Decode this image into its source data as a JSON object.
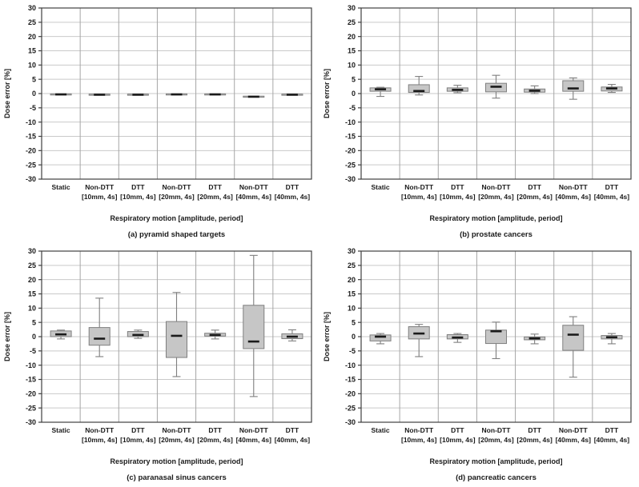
{
  "colors": {
    "background": "#ffffff",
    "box_fill": "#c6c6c6",
    "box_border": "#7f7f7f",
    "whisker": "#7f7f7f",
    "median": "#1a1a1a",
    "gridline": "#c9c9c9",
    "separator": "#a6a6a6",
    "axis": "#404040",
    "text": "#1a1a1a"
  },
  "chart_data": [
    {
      "type": "box",
      "caption": "(a) pyramid shaped targets",
      "ylabel": "Dose error [%]",
      "xlabel": "Respiratory motion [amplitude, period]",
      "ylim": [
        -30,
        30
      ],
      "ytick_step": 5,
      "yticks": [
        30,
        25,
        20,
        15,
        10,
        5,
        0,
        -5,
        -10,
        -15,
        -20,
        -25,
        -30
      ],
      "grid": true,
      "legend": "none",
      "categories": [
        [
          "Static",
          ""
        ],
        [
          "Non-DTT",
          "[10mm, 4s]"
        ],
        [
          "DTT",
          "[10mm, 4s]"
        ],
        [
          "Non-DTT",
          "[20mm, 4s]"
        ],
        [
          "DTT",
          "[20mm, 4s]"
        ],
        [
          "Non-DTT",
          "[40mm, 4s]"
        ],
        [
          "DTT",
          "[40mm, 4s]"
        ]
      ],
      "boxes": [
        {
          "low": -0.5,
          "q1": -0.5,
          "median": -0.3,
          "q3": -0.1,
          "high": -0.1
        },
        {
          "low": -0.6,
          "q1": -0.6,
          "median": -0.4,
          "q3": -0.2,
          "high": -0.2
        },
        {
          "low": -0.6,
          "q1": -0.6,
          "median": -0.4,
          "q3": -0.2,
          "high": -0.2
        },
        {
          "low": -0.5,
          "q1": -0.5,
          "median": -0.3,
          "q3": -0.1,
          "high": -0.1
        },
        {
          "low": -0.5,
          "q1": -0.5,
          "median": -0.3,
          "q3": -0.1,
          "high": -0.1
        },
        {
          "low": -1.3,
          "q1": -1.3,
          "median": -1.1,
          "q3": -0.9,
          "high": -0.9
        },
        {
          "low": -0.6,
          "q1": -0.6,
          "median": -0.4,
          "q3": -0.2,
          "high": -0.2
        }
      ]
    },
    {
      "type": "box",
      "caption": "(b) prostate cancers",
      "ylabel": "Dose error [%]",
      "xlabel": "Respiratory motion [amplitude, period]",
      "ylim": [
        -30,
        30
      ],
      "ytick_step": 5,
      "yticks": [
        30,
        25,
        20,
        15,
        10,
        5,
        0,
        -5,
        -10,
        -15,
        -20,
        -25,
        -30
      ],
      "grid": true,
      "legend": "none",
      "categories": [
        [
          "Static",
          ""
        ],
        [
          "Non-DTT",
          "[10mm, 4s]"
        ],
        [
          "DTT",
          "[10mm, 4s]"
        ],
        [
          "Non-DTT",
          "[20mm, 4s]"
        ],
        [
          "DTT",
          "[20mm, 4s]"
        ],
        [
          "Non-DTT",
          "[40mm, 4s]"
        ],
        [
          "DTT",
          "[40mm, 4s]"
        ]
      ],
      "boxes": [
        {
          "low": -1.0,
          "q1": 0.8,
          "median": 1.5,
          "q3": 2.0,
          "high": 2.2
        },
        {
          "low": -0.5,
          "q1": 0.4,
          "median": 0.9,
          "q3": 3.1,
          "high": 6.0
        },
        {
          "low": 0.3,
          "q1": 0.8,
          "median": 1.3,
          "q3": 2.0,
          "high": 2.9
        },
        {
          "low": -1.6,
          "q1": 0.6,
          "median": 2.4,
          "q3": 3.6,
          "high": 6.4
        },
        {
          "low": 0.0,
          "q1": 0.5,
          "median": 1.0,
          "q3": 1.6,
          "high": 2.7
        },
        {
          "low": -2.0,
          "q1": 0.8,
          "median": 1.8,
          "q3": 4.5,
          "high": 5.5
        },
        {
          "low": 0.4,
          "q1": 0.9,
          "median": 1.8,
          "q3": 2.3,
          "high": 3.2
        }
      ]
    },
    {
      "type": "box",
      "caption": "(c) paranasal sinus cancers",
      "ylabel": "Dose error [%]",
      "xlabel": "Respiratory motion [amplitude, period]",
      "ylim": [
        -30,
        30
      ],
      "ytick_step": 5,
      "yticks": [
        30,
        25,
        20,
        15,
        10,
        5,
        0,
        -5,
        -10,
        -15,
        -20,
        -25,
        -30
      ],
      "grid": true,
      "legend": "none",
      "categories": [
        [
          "Static",
          ""
        ],
        [
          "Non-DTT",
          "[10mm, 4s]"
        ],
        [
          "DTT",
          "[10mm, 4s]"
        ],
        [
          "Non-DTT",
          "[20mm, 4s]"
        ],
        [
          "DTT",
          "[20mm, 4s]"
        ],
        [
          "Non-DTT",
          "[40mm, 4s]"
        ],
        [
          "DTT",
          "[40mm, 4s]"
        ]
      ],
      "boxes": [
        {
          "low": -0.8,
          "q1": 0.0,
          "median": 0.8,
          "q3": 2.0,
          "high": 2.3
        },
        {
          "low": -7.0,
          "q1": -3.0,
          "median": -0.7,
          "q3": 3.2,
          "high": 13.5
        },
        {
          "low": -0.6,
          "q1": 0.0,
          "median": 0.6,
          "q3": 1.8,
          "high": 2.3
        },
        {
          "low": -14.0,
          "q1": -7.3,
          "median": 0.3,
          "q3": 5.3,
          "high": 15.5
        },
        {
          "low": -0.8,
          "q1": 0.2,
          "median": 0.6,
          "q3": 1.2,
          "high": 2.3
        },
        {
          "low": -21.0,
          "q1": -4.2,
          "median": -1.7,
          "q3": 11.0,
          "high": 28.5
        },
        {
          "low": -1.5,
          "q1": -0.7,
          "median": 0.0,
          "q3": 1.0,
          "high": 2.4
        }
      ]
    },
    {
      "type": "box",
      "caption": "(d) pancreatic cancers",
      "ylabel": "Dose error [%]",
      "xlabel": "Respiratory motion [amplitude, period]",
      "ylim": [
        -30,
        30
      ],
      "ytick_step": 5,
      "yticks": [
        30,
        25,
        20,
        15,
        10,
        5,
        0,
        -5,
        -10,
        -15,
        -20,
        -25,
        -30
      ],
      "grid": true,
      "legend": "none",
      "categories": [
        [
          "Static",
          ""
        ],
        [
          "Non-DTT",
          "[10mm, 4s]"
        ],
        [
          "DTT",
          "[10mm, 4s]"
        ],
        [
          "Non-DTT",
          "[20mm, 4s]"
        ],
        [
          "DTT",
          "[20mm, 4s]"
        ],
        [
          "Non-DTT",
          "[40mm, 4s]"
        ],
        [
          "DTT",
          "[40mm, 4s]"
        ]
      ],
      "boxes": [
        {
          "low": -2.5,
          "q1": -1.5,
          "median": 0.0,
          "q3": 0.6,
          "high": 1.1
        },
        {
          "low": -7.0,
          "q1": -0.8,
          "median": 1.1,
          "q3": 3.5,
          "high": 4.3
        },
        {
          "low": -2.0,
          "q1": -0.8,
          "median": -0.3,
          "q3": 0.7,
          "high": 1.1
        },
        {
          "low": -7.7,
          "q1": -2.4,
          "median": 1.9,
          "q3": 2.3,
          "high": 5.1
        },
        {
          "low": -2.5,
          "q1": -1.1,
          "median": -0.6,
          "q3": -0.1,
          "high": 0.9
        },
        {
          "low": -14.2,
          "q1": -4.8,
          "median": 0.7,
          "q3": 4.0,
          "high": 7.0
        },
        {
          "low": -2.5,
          "q1": -0.8,
          "median": -0.2,
          "q3": 0.4,
          "high": 1.1
        }
      ]
    }
  ]
}
